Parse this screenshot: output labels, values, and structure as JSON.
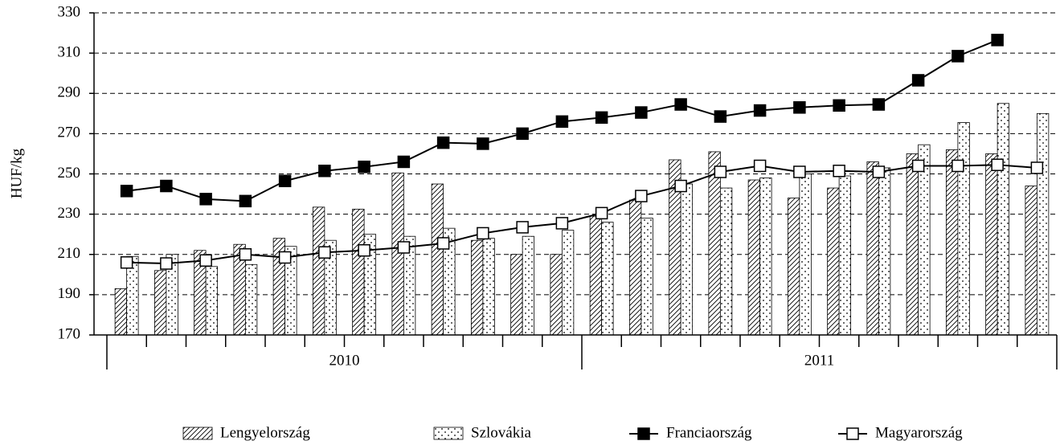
{
  "chart_data": {
    "type": "bar_line",
    "y_label": "HUF/kg",
    "categories": [
      null,
      null,
      null,
      null,
      null,
      null,
      null,
      null,
      null,
      null,
      null,
      null,
      null,
      null,
      null,
      null,
      null,
      null,
      null,
      null,
      null,
      null,
      null,
      null
    ],
    "groups": [
      "2010",
      "2011"
    ],
    "ylim": [
      170,
      330
    ],
    "yticks": [
      170,
      190,
      210,
      230,
      250,
      270,
      290,
      310,
      330
    ],
    "grid": true,
    "legend": "bottom",
    "series": [
      {
        "name": "Lengyelország",
        "type": "bar",
        "pattern": "hatch",
        "color": "#000000",
        "values": [
          193,
          202,
          212,
          215,
          218,
          233.5,
          232.5,
          250.5,
          245,
          217,
          210,
          210,
          229,
          237,
          257,
          261,
          247,
          238,
          243,
          256,
          260,
          262,
          260,
          244
        ]
      },
      {
        "name": "Szlovákia",
        "type": "bar",
        "pattern": "dots",
        "color": "#000000",
        "values": [
          209,
          210,
          204,
          205,
          214,
          217,
          220,
          219,
          223,
          218,
          219,
          222,
          226,
          228,
          245,
          243,
          248,
          250,
          249,
          253,
          264.5,
          275.5,
          285,
          280
        ]
      },
      {
        "name": "Franciaország",
        "type": "line",
        "marker_fill": "#000000",
        "color": "#000000",
        "values": [
          241.5,
          244,
          237.5,
          236.5,
          246.5,
          251.5,
          253.5,
          256,
          265.5,
          265,
          270,
          276,
          278,
          280.5,
          284.5,
          278.5,
          281.5,
          283,
          284,
          284.5,
          296.5,
          308.5,
          316.5,
          null
        ]
      },
      {
        "name": "Magyarország",
        "type": "line",
        "marker_fill": "#ffffff",
        "color": "#000000",
        "values": [
          206,
          205.5,
          207,
          210,
          208.5,
          211,
          212,
          213.5,
          215.5,
          220.5,
          223.5,
          225.5,
          230.5,
          239,
          244,
          251,
          254,
          251,
          251.5,
          251,
          254,
          254,
          254.5,
          253
        ]
      }
    ]
  }
}
